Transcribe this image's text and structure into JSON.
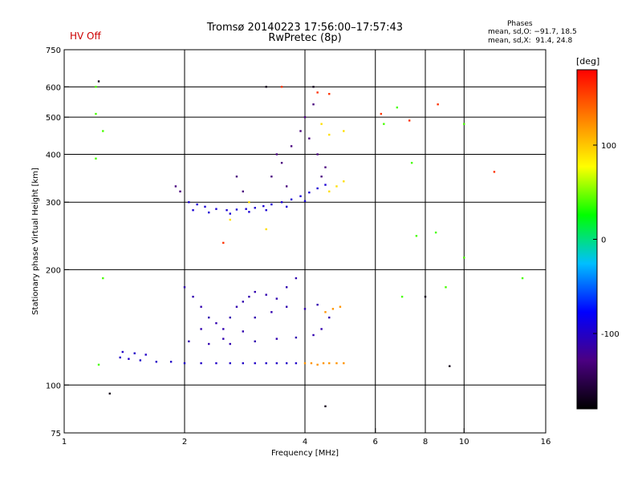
{
  "header": {
    "title_line1": "Tromsø 20140223 17:56:00–17:57:43",
    "title_line2": "RwPretec (8p)",
    "hv_status": "HV Off",
    "hv_color": "#cc0000"
  },
  "phases_box": {
    "heading": "Phases",
    "o_line": "mean, sd,O: −91.7, 18.5",
    "x_line": "mean, sd,X:  91.4, 24.8"
  },
  "colorbar": {
    "unit": "[deg]",
    "ticks": [
      "100",
      "0",
      "-100"
    ],
    "tick_values": [
      100,
      0,
      -100
    ],
    "range": [
      -180,
      180
    ],
    "colors": [
      "#000000",
      "#4b0082",
      "#0000ff",
      "#00bfff",
      "#00ff00",
      "#ffff00",
      "#ff8000",
      "#ff0000"
    ]
  },
  "chart_data": {
    "type": "scatter",
    "title": "Tromsø 20140223 17:56:00–17:57:43",
    "subtitle": "RwPretec (8p)",
    "xlabel": "Frequency [MHz]",
    "ylabel": "Stationary phase Virtual Height [km]",
    "x_scale": "log",
    "y_scale": "log",
    "xlim": [
      1,
      16
    ],
    "ylim": [
      75,
      750
    ],
    "x_ticks": [
      1,
      2,
      4,
      6,
      8,
      10,
      16
    ],
    "x_tick_labels": [
      "1",
      "2",
      "4",
      "6",
      "8",
      "10",
      "16"
    ],
    "x_grid": [
      2,
      4,
      6,
      8,
      10
    ],
    "y_ticks": [
      75,
      100,
      200,
      300,
      400,
      500,
      600,
      750
    ],
    "y_tick_labels": [
      "75",
      "100",
      "200",
      "300",
      "400",
      "500",
      "600",
      "750"
    ],
    "y_grid": [
      100,
      200,
      300,
      400,
      500,
      600
    ],
    "grid": true,
    "color_encoding": "phase [deg]",
    "point_groups": [
      {
        "name": "",
        "phase": -95,
        "points": [
          [
            2.05,
            300
          ],
          [
            2.15,
            296
          ],
          [
            2.25,
            292
          ],
          [
            2.4,
            288
          ],
          [
            2.55,
            286
          ],
          [
            2.7,
            287
          ],
          [
            2.85,
            288
          ],
          [
            3.0,
            290
          ],
          [
            3.15,
            293
          ],
          [
            3.3,
            296
          ],
          [
            3.5,
            300
          ],
          [
            3.7,
            305
          ],
          [
            3.9,
            311
          ],
          [
            4.1,
            318
          ],
          [
            4.3,
            326
          ],
          [
            4.5,
            333
          ],
          [
            2.1,
            286
          ],
          [
            2.3,
            282
          ],
          [
            2.6,
            280
          ],
          [
            2.9,
            283
          ],
          [
            3.2,
            286
          ],
          [
            3.6,
            292
          ],
          [
            4.0,
            302
          ]
        ]
      },
      {
        "name": "",
        "phase": -100,
        "points": [
          [
            1.38,
            118
          ],
          [
            1.45,
            117
          ],
          [
            1.55,
            116
          ],
          [
            1.7,
            115
          ],
          [
            1.85,
            115
          ],
          [
            2.0,
            114
          ],
          [
            2.2,
            114
          ],
          [
            2.4,
            114
          ],
          [
            2.6,
            114
          ],
          [
            2.8,
            114
          ],
          [
            3.0,
            114
          ],
          [
            3.2,
            114
          ],
          [
            3.4,
            114
          ],
          [
            3.6,
            114
          ],
          [
            3.8,
            114
          ],
          [
            1.4,
            122
          ],
          [
            1.5,
            121
          ],
          [
            1.6,
            120
          ]
        ]
      },
      {
        "name": "",
        "phase": 120,
        "points": [
          [
            4.0,
            114
          ],
          [
            4.15,
            114
          ],
          [
            4.3,
            113
          ],
          [
            4.45,
            114
          ],
          [
            4.6,
            114
          ],
          [
            4.8,
            114
          ],
          [
            5.0,
            114
          ],
          [
            4.5,
            155
          ],
          [
            4.7,
            158
          ],
          [
            4.9,
            160
          ]
        ]
      },
      {
        "name": "",
        "phase": -110,
        "points": [
          [
            2.0,
            180
          ],
          [
            2.1,
            170
          ],
          [
            2.2,
            160
          ],
          [
            2.3,
            150
          ],
          [
            2.4,
            145
          ],
          [
            2.5,
            140
          ],
          [
            2.6,
            150
          ],
          [
            2.7,
            160
          ],
          [
            2.8,
            165
          ],
          [
            2.9,
            170
          ],
          [
            3.0,
            175
          ],
          [
            3.2,
            172
          ],
          [
            3.4,
            168
          ],
          [
            3.6,
            180
          ],
          [
            3.8,
            190
          ],
          [
            2.05,
            130
          ],
          [
            2.3,
            128
          ],
          [
            2.6,
            128
          ],
          [
            3.0,
            130
          ],
          [
            3.4,
            132
          ],
          [
            3.8,
            133
          ],
          [
            4.2,
            135
          ],
          [
            4.4,
            140
          ],
          [
            4.6,
            150
          ],
          [
            3.0,
            150
          ],
          [
            3.3,
            155
          ],
          [
            3.6,
            160
          ],
          [
            4.0,
            158
          ],
          [
            4.3,
            162
          ],
          [
            2.2,
            140
          ],
          [
            2.5,
            132
          ],
          [
            2.8,
            138
          ]
        ]
      },
      {
        "name": "",
        "phase": -130,
        "points": [
          [
            3.3,
            350
          ],
          [
            3.5,
            380
          ],
          [
            3.7,
            420
          ],
          [
            3.9,
            460
          ],
          [
            4.1,
            440
          ],
          [
            4.3,
            400
          ],
          [
            4.5,
            370
          ],
          [
            3.4,
            400
          ],
          [
            3.6,
            330
          ],
          [
            4.0,
            500
          ],
          [
            4.2,
            540
          ],
          [
            4.4,
            350
          ],
          [
            2.7,
            350
          ],
          [
            2.8,
            320
          ],
          [
            1.9,
            330
          ],
          [
            1.95,
            320
          ]
        ]
      },
      {
        "name": "",
        "phase": 90,
        "points": [
          [
            4.6,
            320
          ],
          [
            4.8,
            330
          ],
          [
            5.0,
            340
          ],
          [
            4.4,
            480
          ],
          [
            4.6,
            450
          ],
          [
            5.0,
            460
          ],
          [
            2.6,
            270
          ],
          [
            3.2,
            255
          ],
          [
            2.9,
            300
          ]
        ]
      },
      {
        "name": "",
        "phase": 40,
        "points": [
          [
            1.2,
            600
          ],
          [
            1.2,
            510
          ],
          [
            1.2,
            390
          ],
          [
            1.25,
            460
          ],
          [
            1.22,
            113
          ],
          [
            1.25,
            190
          ],
          [
            6.3,
            480
          ],
          [
            6.8,
            530
          ],
          [
            7.4,
            380
          ],
          [
            7.6,
            245
          ],
          [
            8.5,
            250
          ],
          [
            10.0,
            480
          ],
          [
            10.0,
            215
          ],
          [
            14.0,
            190
          ],
          [
            9.0,
            180
          ],
          [
            7.0,
            170
          ]
        ]
      },
      {
        "name": "",
        "phase": -170,
        "points": [
          [
            1.22,
            620
          ],
          [
            1.3,
            95
          ],
          [
            3.2,
            600
          ],
          [
            4.2,
            600
          ],
          [
            4.5,
            88
          ],
          [
            8.0,
            170
          ],
          [
            9.2,
            112
          ]
        ]
      },
      {
        "name": "",
        "phase": 160,
        "points": [
          [
            4.3,
            580
          ],
          [
            4.6,
            575
          ],
          [
            6.2,
            510
          ],
          [
            7.3,
            490
          ],
          [
            8.6,
            540
          ],
          [
            11.9,
            360
          ],
          [
            2.5,
            235
          ],
          [
            3.5,
            600
          ]
        ]
      }
    ]
  }
}
